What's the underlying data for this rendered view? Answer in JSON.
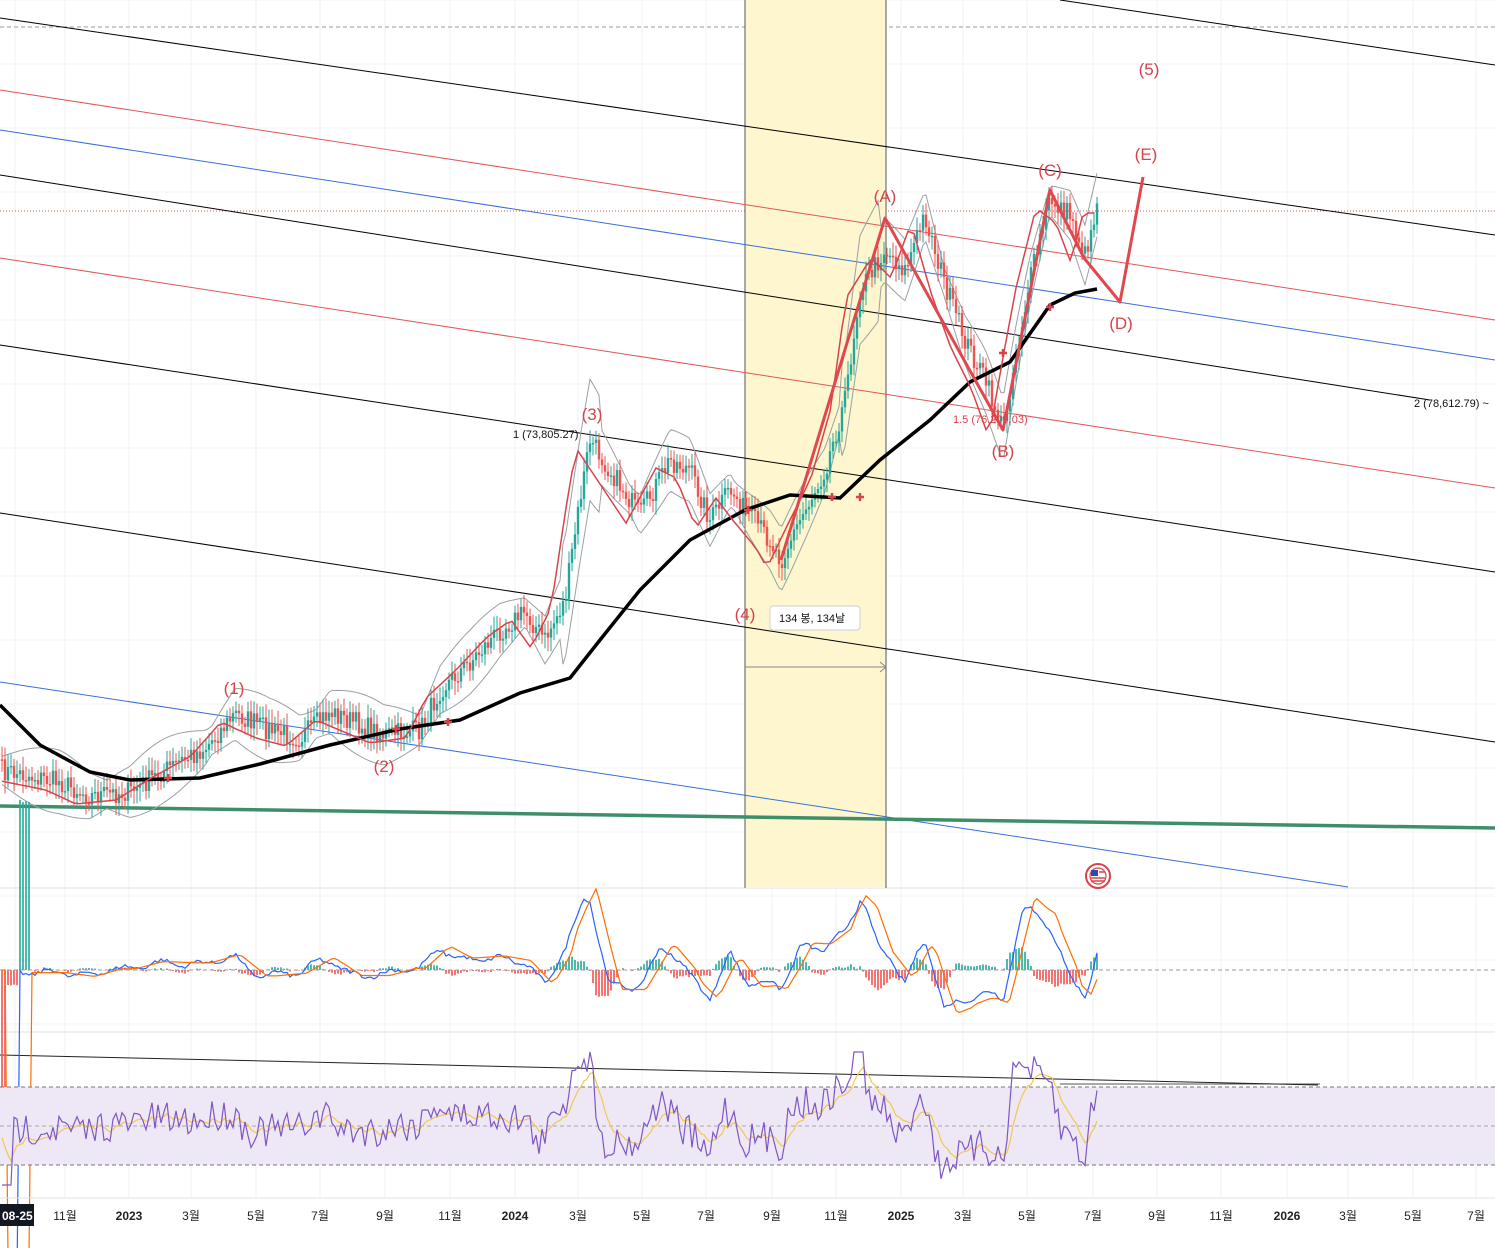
{
  "chart_data": {
    "type": "line",
    "x_axis": {
      "tick_labels": [
        "08-25",
        "11월",
        "2023",
        "3월",
        "5월",
        "7월",
        "9월",
        "11월",
        "2024",
        "3월",
        "5월",
        "7월",
        "9월",
        "11월",
        "2025",
        "3월",
        "5월",
        "7월",
        "9월",
        "11월",
        "2026",
        "3월",
        "5월",
        "7월"
      ],
      "bold_labels": [
        "2023",
        "2024",
        "2025",
        "2026"
      ],
      "current_date_badge": "08-25"
    },
    "wave_labels": [
      "(1)",
      "(2)",
      "(3)",
      "(4)",
      "(5)",
      "(A)",
      "(B)",
      "(C)",
      "(D)",
      "(E)"
    ],
    "fib_labels": {
      "level_1": "1 (73,805.27)",
      "level_2": "2 (78,612.79) ~",
      "level_1_5": "1.5 (76,209.03)"
    },
    "date_range_tooltip": "134 봉, 134날",
    "colors": {
      "candle_up": "#26a69a",
      "candle_down": "#ef5350",
      "moving_average_long": "#000000",
      "moving_average_short": "#d9434b",
      "bollinger": "#9aa0a6",
      "wave_line": "#e0474f",
      "channel_black": "#000000",
      "channel_red": "#e05757",
      "channel_blue": "#3a6fd8",
      "support_green": "#3d8f6b",
      "highlight_zone": "#fdf6cf",
      "macd_line": "#2962ff",
      "signal_line": "#ff6d00",
      "rsi_line": "#7e57c2",
      "rsi_ma": "#f2c94c",
      "rsi_band": "#ede7f6"
    },
    "panels": [
      "price",
      "macd",
      "rsi"
    ],
    "grid": true,
    "legend": "none"
  }
}
